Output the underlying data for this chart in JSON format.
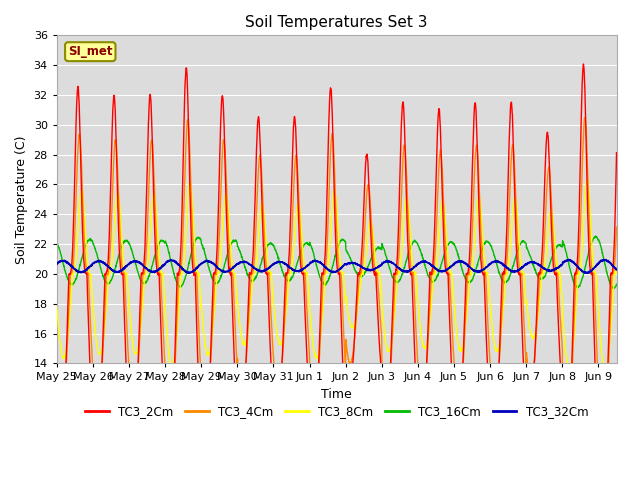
{
  "title": "Soil Temperatures Set 3",
  "xlabel": "Time",
  "ylabel": "Soil Temperature (C)",
  "ylim": [
    14,
    36
  ],
  "yticks": [
    14,
    16,
    18,
    20,
    22,
    24,
    26,
    28,
    30,
    32,
    34,
    36
  ],
  "xlabels": [
    "May 25",
    "May 26",
    "May 27",
    "May 28",
    "May 29",
    "May 30",
    "May 31",
    "Jun 1",
    "Jun 2",
    "Jun 3",
    "Jun 4",
    "Jun 5",
    "Jun 6",
    "Jun 7",
    "Jun 8",
    "Jun 9"
  ],
  "annotation_text": "SI_met",
  "annotation_color": "#8B0000",
  "annotation_bg": "#FFFF99",
  "annotation_border": "#8B8B00",
  "colors": {
    "TC3_2Cm": "#FF0000",
    "TC3_4Cm": "#FF8800",
    "TC3_8Cm": "#FFFF00",
    "TC3_16Cm": "#00BB00",
    "TC3_32Cm": "#0000BB"
  },
  "plot_bg": "#DCDCDC",
  "grid_color": "#FFFFFF",
  "n_days": 15.5,
  "points_per_day": 144,
  "day_peak_amps": [
    12.5,
    12.0,
    12.0,
    13.8,
    12.0,
    10.5,
    10.5,
    12.5,
    8.0,
    11.5,
    11.0,
    11.5,
    11.5,
    9.5,
    14.0,
    14.5
  ],
  "base_mean": 20.0,
  "min_temp": 17.5
}
